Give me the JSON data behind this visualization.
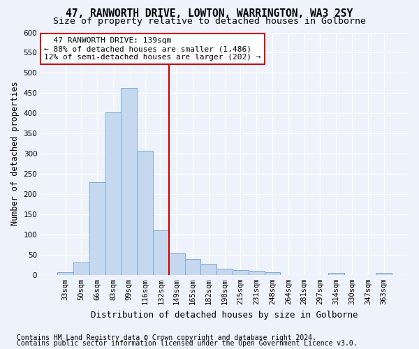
{
  "title": "47, RANWORTH DRIVE, LOWTON, WARRINGTON, WA3 2SY",
  "subtitle": "Size of property relative to detached houses in Golborne",
  "xlabel": "Distribution of detached houses by size in Golborne",
  "ylabel": "Number of detached properties",
  "bar_color": "#c5d8f0",
  "bar_edge_color": "#7aadd4",
  "categories": [
    "33sqm",
    "50sqm",
    "66sqm",
    "83sqm",
    "99sqm",
    "116sqm",
    "132sqm",
    "149sqm",
    "165sqm",
    "182sqm",
    "198sqm",
    "215sqm",
    "231sqm",
    "248sqm",
    "264sqm",
    "281sqm",
    "297sqm",
    "314sqm",
    "330sqm",
    "347sqm",
    "363sqm"
  ],
  "values": [
    6,
    30,
    229,
    402,
    463,
    307,
    110,
    54,
    40,
    27,
    15,
    12,
    10,
    6,
    0,
    0,
    0,
    5,
    0,
    0,
    5
  ],
  "vline_x": 6.5,
  "vline_color": "#cc0000",
  "annotation_text": "  47 RANWORTH DRIVE: 139sqm  \n← 88% of detached houses are smaller (1,486)\n12% of semi-detached houses are larger (202) →",
  "annotation_box_color": "#ffffff",
  "annotation_box_edge_color": "#cc0000",
  "ylim": [
    0,
    600
  ],
  "yticks": [
    0,
    50,
    100,
    150,
    200,
    250,
    300,
    350,
    400,
    450,
    500,
    550,
    600
  ],
  "footer1": "Contains HM Land Registry data © Crown copyright and database right 2024.",
  "footer2": "Contains public sector information licensed under the Open Government Licence v3.0.",
  "background_color": "#eef2fa",
  "grid_color": "#ffffff",
  "title_fontsize": 10.5,
  "subtitle_fontsize": 9.5,
  "xlabel_fontsize": 9,
  "ylabel_fontsize": 8.5,
  "tick_fontsize": 7.5,
  "annotation_fontsize": 8,
  "footer_fontsize": 7
}
